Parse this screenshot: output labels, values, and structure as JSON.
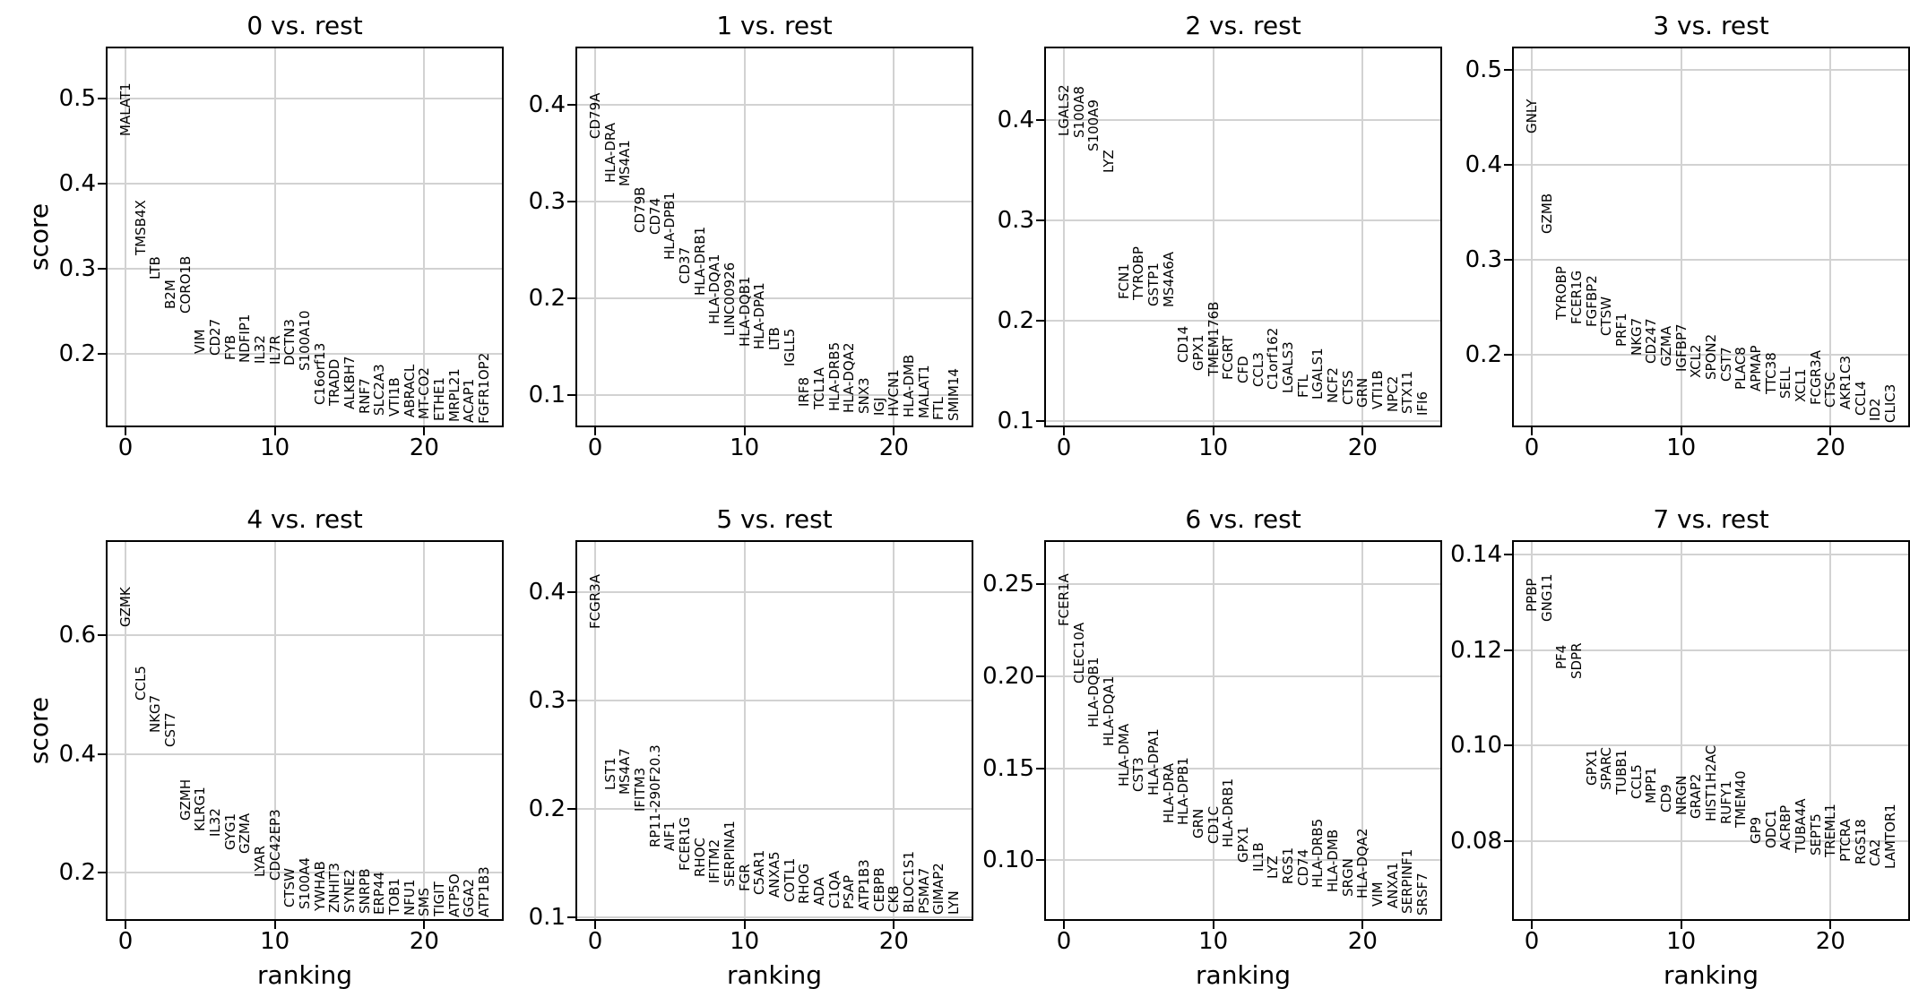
{
  "figure": {
    "background": "#ffffff",
    "grid_color": "#d2d2d2",
    "spine_color": "#000000",
    "text_color": "#000000",
    "xlabel": "ranking",
    "ylabel": "score"
  },
  "chart_data": [
    {
      "type": "scatter",
      "title": "0 vs. rest",
      "xlabel": "",
      "ylabel": "score",
      "xlim": [
        -1.2,
        25.2
      ],
      "ylim": [
        0.116,
        0.559
      ],
      "xticks": [
        0,
        10,
        20
      ],
      "xtick_labels": [
        "0",
        "10",
        "20"
      ],
      "yticks": [
        0.2,
        0.3,
        0.4,
        0.5
      ],
      "ytick_labels": [
        "0.2",
        "0.3",
        "0.4",
        "0.5"
      ],
      "grid": true,
      "genes": [
        "MALAT1",
        "TMSB4X",
        "LTB",
        "B2M",
        "CORO1B",
        "VIM",
        "CD27",
        "FYB",
        "NDFIP1",
        "IL32",
        "IL7R",
        "DCTN3",
        "S100A10",
        "C16orf13",
        "TRADD",
        "ALKBH7",
        "RNF7",
        "SLC2A3",
        "VTI1B",
        "ABRACL",
        "MT-CO2",
        "ETHE1",
        "MRPL21",
        "ACAP1",
        "FGFR1OP2"
      ],
      "scores": [
        0.456,
        0.316,
        0.287,
        0.253,
        0.248,
        0.2,
        0.198,
        0.193,
        0.19,
        0.189,
        0.188,
        0.187,
        0.18,
        0.14,
        0.139,
        0.135,
        0.13,
        0.128,
        0.126,
        0.125,
        0.123,
        0.121,
        0.12,
        0.119,
        0.118
      ]
    },
    {
      "type": "scatter",
      "title": "1 vs. rest",
      "xlabel": "",
      "ylabel": "",
      "xlim": [
        -1.2,
        25.2
      ],
      "ylim": [
        0.069,
        0.458
      ],
      "xticks": [
        0,
        10,
        20
      ],
      "xtick_labels": [
        "0",
        "10",
        "20"
      ],
      "yticks": [
        0.1,
        0.2,
        0.3,
        0.4
      ],
      "ytick_labels": [
        "0.1",
        "0.2",
        "0.3",
        "0.4"
      ],
      "grid": true,
      "genes": [
        "CD79A",
        "HLA-DRA",
        "MS4A1",
        "CD79B",
        "CD74",
        "HLA-DPB1",
        "CD37",
        "HLA-DRB1",
        "HLA-DQA1",
        "LINC00926",
        "HLA-DQB1",
        "HLA-DPA1",
        "LTB",
        "IGLL5",
        "IRF8",
        "TCL1A",
        "HLA-DRB5",
        "HLA-DQA2",
        "SNX3",
        "IGJ",
        "HVCN1",
        "HLA-DMB",
        "MALAT1",
        "FTL",
        "SMIM14"
      ],
      "scores": [
        0.365,
        0.319,
        0.316,
        0.268,
        0.266,
        0.24,
        0.215,
        0.203,
        0.173,
        0.161,
        0.15,
        0.148,
        0.147,
        0.13,
        0.088,
        0.086,
        0.084,
        0.082,
        0.081,
        0.079,
        0.078,
        0.077,
        0.076,
        0.075,
        0.074
      ]
    },
    {
      "type": "scatter",
      "title": "2 vs. rest",
      "xlabel": "",
      "ylabel": "",
      "xlim": [
        -1.2,
        25.2
      ],
      "ylim": [
        0.0955,
        0.471
      ],
      "xticks": [
        0,
        10,
        20
      ],
      "xtick_labels": [
        "0",
        "10",
        "20"
      ],
      "yticks": [
        0.1,
        0.2,
        0.3,
        0.4
      ],
      "ytick_labels": [
        "0.1",
        "0.2",
        "0.3",
        "0.4"
      ],
      "grid": true,
      "genes": [
        "LGALS2",
        "S100A8",
        "S100A9",
        "LYZ",
        "FCN1",
        "TYROBP",
        "GSTP1",
        "MS4A6A",
        "CD14",
        "GPX1",
        "TMEM176B",
        "FCGRT",
        "CFD",
        "CCL3",
        "C1orf162",
        "LGALS3",
        "FTL",
        "LGALS1",
        "NCF2",
        "CTSS",
        "GRN",
        "VTI1B",
        "NPC2",
        "STX11",
        "IFI6"
      ],
      "scores": [
        0.384,
        0.382,
        0.368,
        0.347,
        0.221,
        0.22,
        0.214,
        0.213,
        0.158,
        0.15,
        0.145,
        0.141,
        0.137,
        0.134,
        0.131,
        0.128,
        0.123,
        0.121,
        0.118,
        0.116,
        0.113,
        0.112,
        0.109,
        0.107,
        0.105
      ]
    },
    {
      "type": "scatter",
      "title": "3 vs. rest",
      "xlabel": "",
      "ylabel": "",
      "xlim": [
        -1.2,
        25.2
      ],
      "ylim": [
        0.125,
        0.523
      ],
      "xticks": [
        0,
        10,
        20
      ],
      "xtick_labels": [
        "0",
        "10",
        "20"
      ],
      "yticks": [
        0.2,
        0.3,
        0.4,
        0.5
      ],
      "ytick_labels": [
        "0.2",
        "0.3",
        "0.4",
        "0.5"
      ],
      "grid": true,
      "genes": [
        "GNLY",
        "GZMB",
        "TYROBP",
        "FCER1G",
        "FGFBP2",
        "CTSW",
        "PRF1",
        "NKG7",
        "CD247",
        "GZMA",
        "IGFBP7",
        "XCL2",
        "SPON2",
        "CST7",
        "PLAC8",
        "APMAP",
        "TTC38",
        "SELL",
        "XCL1",
        "FCGR3A",
        "CTSC",
        "AKR1C3",
        "CCL4",
        "ID2",
        "CLIC3"
      ],
      "scores": [
        0.433,
        0.327,
        0.237,
        0.232,
        0.229,
        0.22,
        0.208,
        0.199,
        0.19,
        0.187,
        0.182,
        0.175,
        0.173,
        0.171,
        0.163,
        0.161,
        0.158,
        0.153,
        0.15,
        0.147,
        0.144,
        0.142,
        0.135,
        0.13,
        0.128
      ]
    },
    {
      "type": "scatter",
      "title": "4 vs. rest",
      "xlabel": "ranking",
      "ylabel": "score",
      "xlim": [
        -1.2,
        25.2
      ],
      "ylim": [
        0.121,
        0.758
      ],
      "xticks": [
        0,
        10,
        20
      ],
      "xtick_labels": [
        "0",
        "10",
        "20"
      ],
      "yticks": [
        0.2,
        0.4,
        0.6
      ],
      "ytick_labels": [
        "0.2",
        "0.4",
        "0.6"
      ],
      "grid": true,
      "genes": [
        "GZMK",
        "CCL5",
        "NKG7",
        "CST7",
        "GZMH",
        "KLRG1",
        "IL32",
        "GYG1",
        "GZMA",
        "LYAR",
        "CDC42EP3",
        "CTSW",
        "S100A4",
        "YWHAB",
        "ZNHIT3",
        "SYNE2",
        "SNRPB",
        "ERP44",
        "TOB1",
        "NFU1",
        "SMS",
        "TIGIT",
        "ATP5O",
        "GGA2",
        "ATP1B3"
      ],
      "scores": [
        0.615,
        0.49,
        0.435,
        0.412,
        0.287,
        0.269,
        0.26,
        0.238,
        0.232,
        0.192,
        0.186,
        0.14,
        0.137,
        0.134,
        0.132,
        0.131,
        0.13,
        0.129,
        0.128,
        0.127,
        0.126,
        0.125,
        0.1245,
        0.124,
        0.1235
      ]
    },
    {
      "type": "scatter",
      "title": "5 vs. rest",
      "xlabel": "ranking",
      "ylabel": "",
      "xlim": [
        -1.2,
        25.2
      ],
      "ylim": [
        0.098,
        0.446
      ],
      "xticks": [
        0,
        10,
        20
      ],
      "xtick_labels": [
        "0",
        "10",
        "20"
      ],
      "yticks": [
        0.1,
        0.2,
        0.3,
        0.4
      ],
      "ytick_labels": [
        "0.1",
        "0.2",
        "0.3",
        "0.4"
      ],
      "grid": true,
      "genes": [
        "FCGR3A",
        "LST1",
        "MS4A7",
        "IFITM3",
        "RP11-290F20.3",
        "AIF1",
        "FCER1G",
        "RHOC",
        "IFITM2",
        "SERPINA1",
        "FGR",
        "C5AR1",
        "ANXA5",
        "COTL1",
        "RHOG",
        "ADA",
        "C1QA",
        "PSAP",
        "ATP1B3",
        "CEBPB",
        "CKB",
        "BLOC1S1",
        "PSMA7",
        "GIMAP2",
        "LYN"
      ],
      "scores": [
        0.366,
        0.217,
        0.213,
        0.197,
        0.164,
        0.161,
        0.143,
        0.137,
        0.131,
        0.128,
        0.124,
        0.12,
        0.118,
        0.114,
        0.112,
        0.11,
        0.108,
        0.107,
        0.106,
        0.105,
        0.104,
        0.1035,
        0.103,
        0.1025,
        0.102
      ]
    },
    {
      "type": "scatter",
      "title": "6 vs. rest",
      "xlabel": "ranking",
      "ylabel": "",
      "xlim": [
        -1.2,
        25.2
      ],
      "ylim": [
        0.068,
        0.273
      ],
      "xticks": [
        0,
        10,
        20
      ],
      "xtick_labels": [
        "0",
        "10",
        "20"
      ],
      "yticks": [
        0.1,
        0.15,
        0.2,
        0.25
      ],
      "ytick_labels": [
        "0.10",
        "0.15",
        "0.20",
        "0.25"
      ],
      "grid": true,
      "genes": [
        "FCER1A",
        "CLEC10A",
        "HLA-DQB1",
        "HLA-DQA1",
        "HLA-DMA",
        "CST3",
        "HLA-DPA1",
        "HLA-DRA",
        "HLA-DPB1",
        "GRN",
        "CD1C",
        "HLA-DRB1",
        "GPX1",
        "IL1B",
        "LYZ",
        "RGS1",
        "CD74",
        "HLA-DRB5",
        "HLA-DMB",
        "SRGN",
        "HLA-DQA2",
        "VIM",
        "ANXA1",
        "SERPINF1",
        "SRSF7"
      ],
      "scores": [
        0.227,
        0.196,
        0.172,
        0.162,
        0.14,
        0.137,
        0.135,
        0.12,
        0.119,
        0.112,
        0.109,
        0.107,
        0.0985,
        0.094,
        0.09,
        0.087,
        0.086,
        0.085,
        0.0825,
        0.08,
        0.079,
        0.075,
        0.074,
        0.071,
        0.07
      ]
    },
    {
      "type": "scatter",
      "title": "7 vs. rest",
      "xlabel": "ranking",
      "ylabel": "",
      "xlim": [
        -1.2,
        25.2
      ],
      "ylim": [
        0.0637,
        0.1426
      ],
      "xticks": [
        0,
        10,
        20
      ],
      "xtick_labels": [
        "0",
        "10",
        "20"
      ],
      "yticks": [
        0.08,
        0.1,
        0.12,
        0.14
      ],
      "ytick_labels": [
        "0.08",
        "0.10",
        "0.12",
        "0.14"
      ],
      "grid": true,
      "genes": [
        "PPBP",
        "GNG11",
        "PF4",
        "SDPR",
        "GPX1",
        "SPARC",
        "TUBB1",
        "CCL5",
        "MPP1",
        "CD9",
        "NRGN",
        "GRAP2",
        "HIST1H2AC",
        "RUFY1",
        "TMEM40",
        "GP9",
        "ODC1",
        "ACRBP",
        "TUBA4A",
        "SEPT5",
        "TREML1",
        "PTCRA",
        "RGS18",
        "CA2",
        "LAMTOR1"
      ],
      "scores": [
        0.128,
        0.126,
        0.116,
        0.114,
        0.0916,
        0.0907,
        0.0897,
        0.0888,
        0.0879,
        0.086,
        0.0855,
        0.0847,
        0.0841,
        0.0836,
        0.0828,
        0.0794,
        0.0785,
        0.0781,
        0.0776,
        0.077,
        0.0766,
        0.0757,
        0.0751,
        0.0747,
        0.0742
      ]
    }
  ]
}
